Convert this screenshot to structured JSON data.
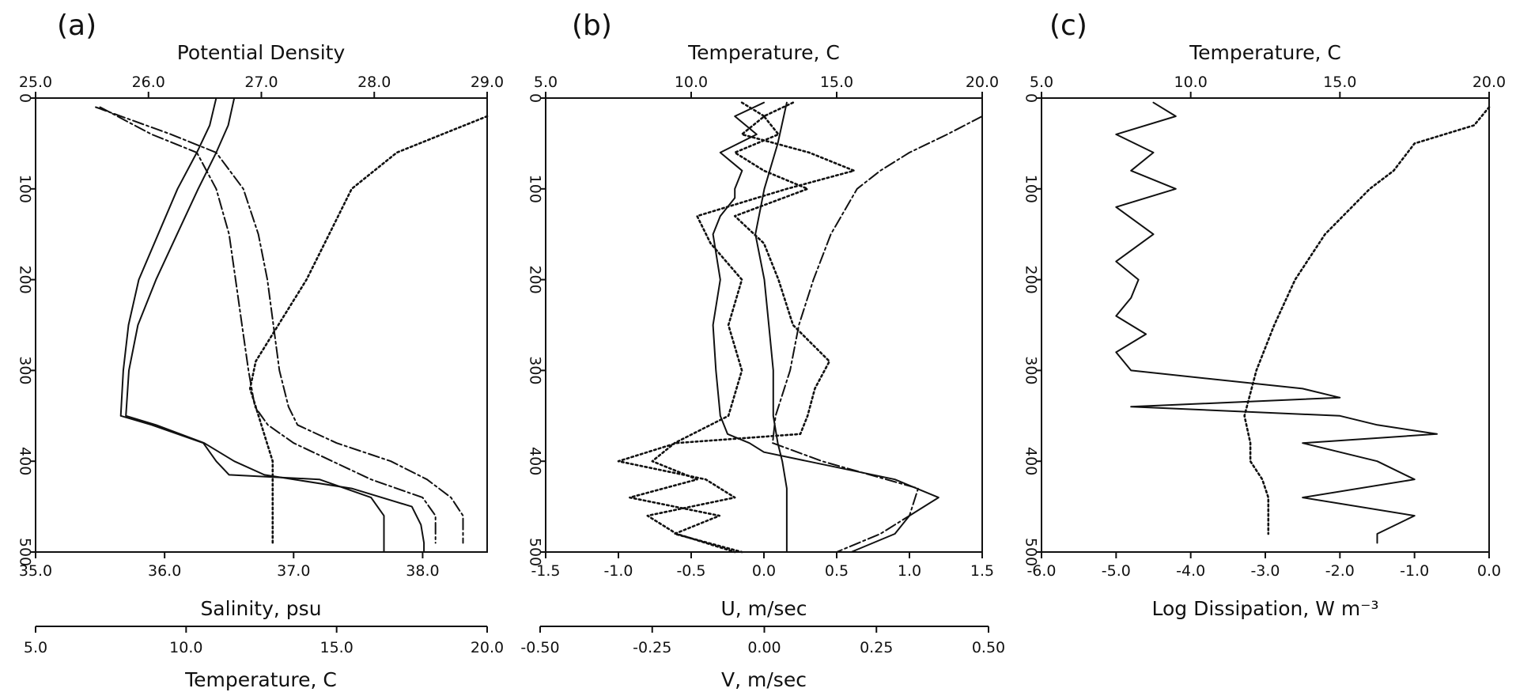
{
  "figure": {
    "panel_labels": [
      "(a)",
      "(b)",
      "(c)"
    ]
  },
  "chart_data": [
    {
      "panel": "(a)",
      "type": "line",
      "top_axis": {
        "label": "Potential Density",
        "range": [
          25.0,
          29.0
        ],
        "ticks": [
          "25.0",
          "26.0",
          "27.0",
          "28.0",
          "29.0"
        ]
      },
      "bottom_axis": {
        "label": "Salinity, psu",
        "range": [
          35.0,
          38.5
        ],
        "ticks": [
          "35.0",
          "36.0",
          "37.0",
          "38.0"
        ]
      },
      "extra_bottom_axis": {
        "label": "Temperature, C",
        "range": [
          5.0,
          20.0
        ],
        "ticks": [
          "5.0",
          "10.0",
          "15.0",
          "20.0"
        ]
      },
      "left_axis": {
        "label": "",
        "range": [
          0,
          500
        ],
        "inverted": true,
        "ticks": [
          "0",
          "100",
          "200",
          "300",
          "400",
          "500"
        ]
      },
      "series": [
        {
          "style": "solid",
          "axis": "salinity",
          "y": [
            0,
            30,
            60,
            100,
            150,
            200,
            250,
            300,
            350,
            360,
            380,
            400,
            415,
            420,
            440,
            460,
            480,
            500
          ],
          "x": [
            36.4,
            36.35,
            36.25,
            36.1,
            35.95,
            35.8,
            35.72,
            35.68,
            35.66,
            35.9,
            36.3,
            36.4,
            36.5,
            37.2,
            37.6,
            37.7,
            37.7,
            37.7
          ]
        },
        {
          "style": "solid",
          "axis": "temperature",
          "y": [
            0,
            30,
            60,
            100,
            150,
            200,
            250,
            300,
            350,
            360,
            380,
            400,
            415,
            430,
            450,
            470,
            490,
            500
          ],
          "x": [
            11.6,
            11.4,
            11.0,
            10.4,
            9.7,
            9.0,
            8.4,
            8.1,
            8.0,
            9.0,
            10.6,
            11.6,
            12.6,
            15.5,
            17.5,
            17.8,
            17.9,
            17.9
          ]
        },
        {
          "style": "dash-dot",
          "axis": "salinity",
          "y": [
            10,
            40,
            60,
            100,
            150,
            200,
            250,
            300,
            340,
            360,
            380,
            400,
            420,
            440,
            460,
            490
          ],
          "x": [
            35.5,
            35.9,
            36.25,
            36.4,
            36.5,
            36.55,
            36.6,
            36.65,
            36.7,
            36.8,
            37.0,
            37.3,
            37.6,
            38.0,
            38.1,
            38.1
          ]
        },
        {
          "style": "dash-dot",
          "axis": "temperature",
          "y": [
            10,
            40,
            60,
            100,
            150,
            200,
            250,
            300,
            340,
            360,
            380,
            400,
            420,
            440,
            460,
            490
          ],
          "x": [
            7.0,
            9.5,
            11.0,
            11.9,
            12.4,
            12.7,
            12.9,
            13.1,
            13.4,
            13.7,
            15.0,
            16.8,
            18.0,
            18.8,
            19.2,
            19.2
          ]
        },
        {
          "style": "dotted",
          "axis": "density",
          "y": [
            20,
            40,
            60,
            80,
            100,
            150,
            200,
            250,
            290,
            320,
            340,
            360,
            380,
            400,
            430,
            460,
            490
          ],
          "x": [
            29.0,
            28.6,
            28.2,
            28.0,
            27.8,
            27.6,
            27.4,
            27.15,
            26.95,
            26.9,
            26.95,
            27.0,
            27.05,
            27.1,
            27.1,
            27.1,
            27.1
          ]
        }
      ]
    },
    {
      "panel": "(b)",
      "type": "line",
      "top_axis": {
        "label": "Temperature, C",
        "range": [
          5.0,
          20.0
        ],
        "ticks": [
          "5.0",
          "10.0",
          "15.0",
          "20.0"
        ]
      },
      "bottom_axis": {
        "label": "U, m/sec",
        "range": [
          -1.5,
          1.5
        ],
        "ticks": [
          "-1.5",
          "-1.0",
          "-0.5",
          "0.0",
          "0.5",
          "1.0",
          "1.5"
        ]
      },
      "extra_bottom_axis": {
        "label": "V, m/sec",
        "range": [
          -0.5,
          0.5
        ],
        "ticks": [
          "-0.50",
          "-0.25",
          "0.00",
          "0.25",
          "0.50"
        ]
      },
      "left_axis": {
        "label": "",
        "range": [
          0,
          500
        ],
        "inverted": true,
        "ticks": [
          "0",
          "100",
          "200",
          "300",
          "400",
          "500"
        ]
      },
      "series": [
        {
          "style": "solid",
          "axis": "u",
          "y": [
            5,
            20,
            40,
            60,
            80,
            100,
            110,
            130,
            150,
            200,
            250,
            300,
            350,
            370,
            380,
            390,
            400,
            420,
            440,
            460,
            480,
            500
          ],
          "x": [
            0.0,
            -0.2,
            -0.05,
            -0.3,
            -0.15,
            -0.2,
            -0.2,
            -0.3,
            -0.35,
            -0.3,
            -0.35,
            -0.33,
            -0.3,
            -0.25,
            -0.1,
            0.0,
            0.3,
            0.9,
            1.2,
            1.0,
            0.9,
            0.6
          ]
        },
        {
          "style": "solid",
          "axis": "v",
          "y": [
            5,
            50,
            100,
            150,
            200,
            250,
            300,
            350,
            380,
            400,
            430,
            460,
            490,
            500
          ],
          "x": [
            0.05,
            0.03,
            0.0,
            -0.02,
            0.0,
            0.01,
            0.02,
            0.02,
            0.03,
            0.04,
            0.05,
            0.05,
            0.05,
            0.05
          ]
        },
        {
          "style": "dash-dot",
          "axis": "temperature",
          "y": [
            20,
            40,
            60,
            80,
            100,
            150,
            200,
            250,
            300,
            350,
            380,
            400,
            430,
            460,
            480,
            500
          ],
          "x": [
            20.0,
            18.8,
            17.5,
            16.5,
            15.7,
            14.8,
            14.2,
            13.7,
            13.4,
            12.9,
            12.8,
            14.5,
            17.8,
            17.5,
            16.5,
            15.0
          ]
        },
        {
          "style": "dotted",
          "axis": "u",
          "y": [
            5,
            20,
            40,
            60,
            80,
            100,
            130,
            160,
            200,
            250,
            290,
            320,
            350,
            370,
            380,
            400,
            420,
            440,
            460,
            480,
            500
          ],
          "x": [
            0.2,
            0.0,
            0.1,
            -0.2,
            0.0,
            0.3,
            -0.2,
            0.0,
            0.1,
            0.2,
            0.45,
            0.35,
            0.3,
            0.25,
            -0.6,
            -1.0,
            -0.4,
            -0.2,
            -0.8,
            -0.6,
            -0.2
          ]
        },
        {
          "style": "dotted",
          "axis": "v",
          "y": [
            5,
            20,
            40,
            60,
            80,
            100,
            130,
            160,
            200,
            250,
            300,
            350,
            380,
            400,
            420,
            440,
            460,
            480,
            500
          ],
          "x": [
            -0.05,
            0.0,
            -0.05,
            0.1,
            0.2,
            0.05,
            -0.15,
            -0.12,
            -0.05,
            -0.08,
            -0.05,
            -0.08,
            -0.2,
            -0.25,
            -0.15,
            -0.3,
            -0.1,
            -0.2,
            -0.05
          ]
        }
      ]
    },
    {
      "panel": "(c)",
      "type": "line",
      "top_axis": {
        "label": "Temperature, C",
        "range": [
          5.0,
          20.0
        ],
        "ticks": [
          "5.0",
          "10.0",
          "15.0",
          "20.0"
        ]
      },
      "bottom_axis": {
        "label": "Log Dissipation, W m⁻³",
        "range": [
          -6.0,
          0.0
        ],
        "ticks": [
          "-6.0",
          "-5.0",
          "-4.0",
          "-3.0",
          "-2.0",
          "-1.0",
          "0.0"
        ]
      },
      "left_axis": {
        "label": "",
        "range": [
          0,
          500
        ],
        "inverted": true,
        "ticks": [
          "0",
          "100",
          "200",
          "300",
          "400",
          "500"
        ]
      },
      "series": [
        {
          "style": "solid",
          "axis": "dissipation",
          "y": [
            5,
            20,
            40,
            60,
            80,
            100,
            120,
            150,
            180,
            200,
            220,
            240,
            260,
            280,
            300,
            320,
            330,
            340,
            350,
            360,
            370,
            380,
            400,
            420,
            440,
            460,
            480,
            490
          ],
          "x": [
            -4.5,
            -4.2,
            -5.0,
            -4.5,
            -4.8,
            -4.2,
            -5.0,
            -4.5,
            -5.0,
            -4.7,
            -4.8,
            -5.0,
            -4.6,
            -5.0,
            -4.8,
            -2.5,
            -2.0,
            -4.8,
            -2.0,
            -1.5,
            -0.7,
            -2.5,
            -1.5,
            -1.0,
            -2.5,
            -1.0,
            -1.5,
            -1.5
          ]
        },
        {
          "style": "dotted",
          "axis": "temperature",
          "y": [
            10,
            30,
            50,
            80,
            100,
            150,
            200,
            250,
            300,
            350,
            380,
            400,
            420,
            440,
            460,
            480
          ],
          "x": [
            20.0,
            19.5,
            17.5,
            16.8,
            16.0,
            14.5,
            13.5,
            12.8,
            12.2,
            11.8,
            12.0,
            12.0,
            12.4,
            12.6,
            12.6,
            12.6
          ]
        }
      ]
    }
  ]
}
